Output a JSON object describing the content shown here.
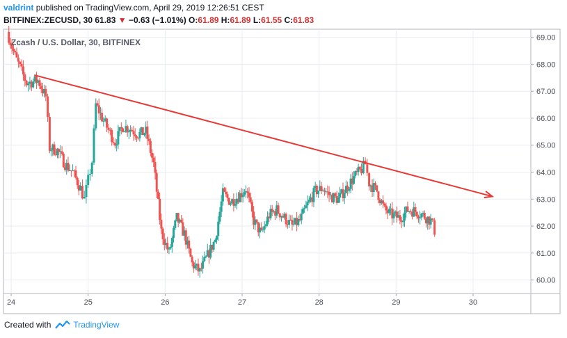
{
  "header": {
    "user": "valdrint",
    "published": "published on TradingView.com, April 29, 2019 12:26:51 CEST",
    "symbol": "BITFINEX:ZECUSD, 30",
    "last": "61.83",
    "arrow": "▼",
    "change": "−0.63 (−1.01%)",
    "o_label": "O:",
    "o": "61.89",
    "h_label": "H:",
    "h": "61.89",
    "l_label": "L:",
    "l": "61.55",
    "c_label": "C:",
    "c": "61.83"
  },
  "footer": {
    "created": "Created with",
    "brand": "TradingView",
    "logo_icon": "tradingview-logo-icon"
  },
  "colors": {
    "up": "#26a69a",
    "down": "#ef5350",
    "trendline": "#e53935",
    "grid": "#e8ecf0",
    "axis": "#a0a4ab",
    "accent": "#2196f3"
  },
  "chart_data": {
    "type": "candlestick",
    "title": "Zcash / U.S. Dollar, 30, BITFINEX",
    "xlabel": "",
    "ylabel": "",
    "ylim": [
      59.5,
      69.3
    ],
    "xlim": [
      23.9,
      30.75
    ],
    "y_ticks": [
      "69.00",
      "68.00",
      "67.00",
      "66.00",
      "65.00",
      "64.00",
      "63.00",
      "62.00",
      "61.00",
      "60.00"
    ],
    "x_ticks": [
      "24",
      "25",
      "26",
      "27",
      "28",
      "29",
      "30"
    ],
    "grid": true,
    "price_line": 61.83,
    "trendline": {
      "x": [
        24.3,
        30.25
      ],
      "y": [
        67.6,
        63.1
      ],
      "arrow": true
    },
    "series": [
      {
        "points": [
          [
            23.95,
            69.2
          ],
          [
            24.05,
            68.3
          ],
          [
            24.2,
            67.3
          ],
          [
            24.35,
            67.4
          ],
          [
            24.45,
            66.8
          ],
          [
            24.5,
            64.9
          ],
          [
            24.6,
            64.8
          ],
          [
            24.7,
            64.3
          ],
          [
            24.8,
            64.0
          ],
          [
            24.9,
            63.4
          ],
          [
            24.95,
            63.0
          ],
          [
            25.0,
            63.7
          ],
          [
            25.05,
            64.4
          ],
          [
            25.1,
            66.5
          ],
          [
            25.2,
            65.9
          ],
          [
            25.35,
            65.1
          ],
          [
            25.45,
            65.7
          ],
          [
            25.55,
            65.6
          ],
          [
            25.65,
            65.4
          ],
          [
            25.75,
            65.5
          ],
          [
            25.85,
            64.3
          ],
          [
            25.95,
            61.8
          ],
          [
            26.05,
            61.0
          ],
          [
            26.15,
            62.3
          ],
          [
            26.25,
            61.7
          ],
          [
            26.35,
            60.6
          ],
          [
            26.45,
            60.3
          ],
          [
            26.55,
            60.9
          ],
          [
            26.65,
            61.5
          ],
          [
            26.75,
            63.2
          ],
          [
            26.85,
            62.9
          ],
          [
            26.95,
            63.1
          ],
          [
            27.05,
            63.4
          ],
          [
            27.15,
            62.2
          ],
          [
            27.25,
            61.7
          ],
          [
            27.35,
            62.4
          ],
          [
            27.45,
            62.6
          ],
          [
            27.55,
            62.3
          ],
          [
            27.65,
            62.0
          ],
          [
            27.75,
            62.2
          ],
          [
            27.85,
            62.8
          ],
          [
            27.95,
            63.3
          ],
          [
            28.05,
            63.4
          ],
          [
            28.15,
            63.1
          ],
          [
            28.25,
            63.0
          ],
          [
            28.35,
            63.4
          ],
          [
            28.45,
            63.8
          ],
          [
            28.55,
            64.1
          ],
          [
            28.6,
            64.3
          ],
          [
            28.65,
            63.6
          ],
          [
            28.75,
            63.3
          ],
          [
            28.85,
            62.6
          ],
          [
            28.95,
            62.4
          ],
          [
            29.05,
            62.3
          ],
          [
            29.15,
            62.6
          ],
          [
            29.25,
            62.55
          ],
          [
            29.35,
            62.4
          ],
          [
            29.45,
            62.2
          ],
          [
            29.5,
            61.83
          ]
        ]
      }
    ]
  }
}
